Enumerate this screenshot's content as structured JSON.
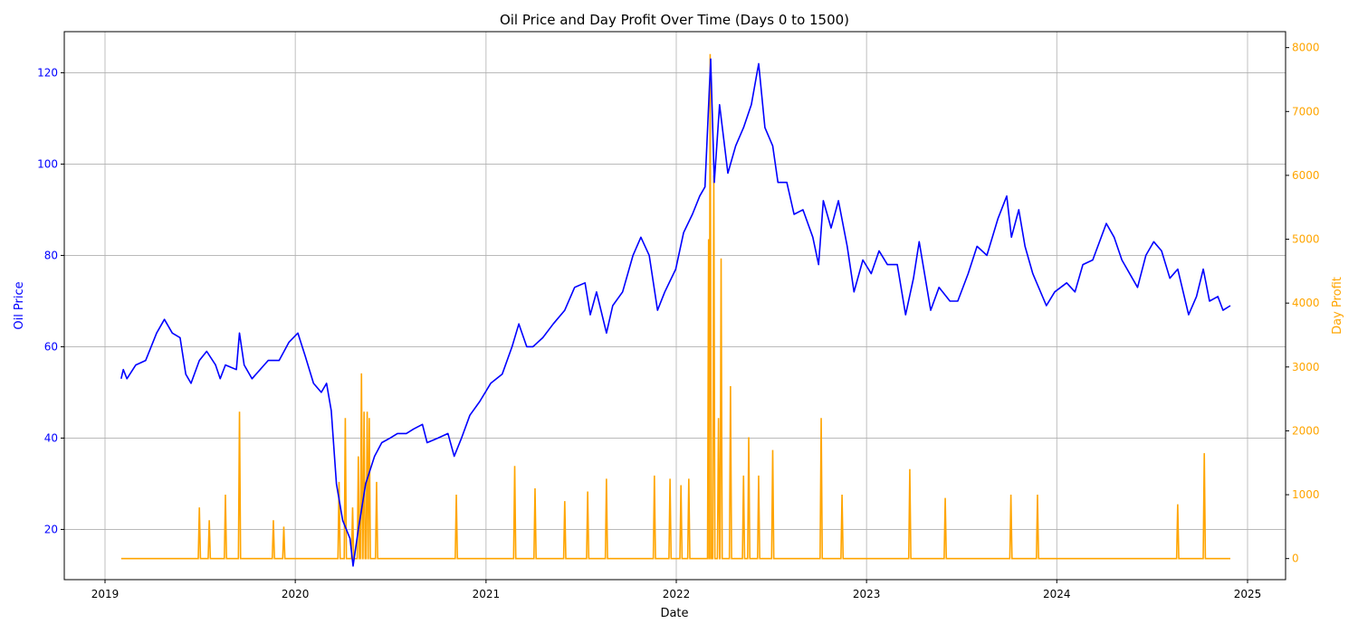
{
  "chart_data": {
    "type": "line",
    "title": "Oil Price and Day Profit Over Time (Days 0 to 1500)",
    "xlabel": "Date",
    "ylabel_left": "Oil Price",
    "ylabel_right": "Day Profit",
    "x_ticks": [
      "2019",
      "2020",
      "2021",
      "2022",
      "2023",
      "2024",
      "2025"
    ],
    "ylim_left": [
      9,
      129
    ],
    "yticks_left": [
      20,
      40,
      60,
      80,
      100,
      120
    ],
    "ylim_right": [
      -330,
      8250
    ],
    "yticks_right": [
      0,
      1000,
      2000,
      3000,
      4000,
      5000,
      6000,
      7000,
      8000
    ],
    "grid": true,
    "colors": {
      "oil": "#0000ff",
      "profit": "#ffa500",
      "grid": "#b0b0b0"
    },
    "series": [
      {
        "axis": "left",
        "color": "#0000ff",
        "points": [
          [
            "2019-02-01",
            53
          ],
          [
            "2019-02-05",
            55
          ],
          [
            "2019-02-12",
            53
          ],
          [
            "2019-03-01",
            56
          ],
          [
            "2019-03-20",
            57
          ],
          [
            "2019-04-10",
            63
          ],
          [
            "2019-04-25",
            66
          ],
          [
            "2019-05-10",
            63
          ],
          [
            "2019-05-25",
            62
          ],
          [
            "2019-06-05",
            54
          ],
          [
            "2019-06-15",
            52
          ],
          [
            "2019-07-01",
            57
          ],
          [
            "2019-07-15",
            59
          ],
          [
            "2019-08-01",
            56
          ],
          [
            "2019-08-10",
            53
          ],
          [
            "2019-08-20",
            56
          ],
          [
            "2019-09-10",
            55
          ],
          [
            "2019-09-16",
            63
          ],
          [
            "2019-09-25",
            56
          ],
          [
            "2019-10-10",
            53
          ],
          [
            "2019-11-10",
            57
          ],
          [
            "2019-12-01",
            57
          ],
          [
            "2019-12-20",
            61
          ],
          [
            "2020-01-06",
            63
          ],
          [
            "2020-01-20",
            58
          ],
          [
            "2020-02-05",
            52
          ],
          [
            "2020-02-20",
            50
          ],
          [
            "2020-03-01",
            52
          ],
          [
            "2020-03-10",
            46
          ],
          [
            "2020-03-20",
            30
          ],
          [
            "2020-04-01",
            22
          ],
          [
            "2020-04-15",
            18
          ],
          [
            "2020-04-21",
            12
          ],
          [
            "2020-05-01",
            20
          ],
          [
            "2020-05-15",
            30
          ],
          [
            "2020-06-01",
            36
          ],
          [
            "2020-06-15",
            39
          ],
          [
            "2020-07-01",
            40
          ],
          [
            "2020-07-15",
            41
          ],
          [
            "2020-08-01",
            41
          ],
          [
            "2020-08-15",
            42
          ],
          [
            "2020-09-01",
            43
          ],
          [
            "2020-09-10",
            39
          ],
          [
            "2020-10-01",
            40
          ],
          [
            "2020-10-20",
            41
          ],
          [
            "2020-11-01",
            36
          ],
          [
            "2020-11-15",
            40
          ],
          [
            "2020-12-01",
            45
          ],
          [
            "2020-12-20",
            48
          ],
          [
            "2021-01-10",
            52
          ],
          [
            "2021-02-01",
            54
          ],
          [
            "2021-02-20",
            60
          ],
          [
            "2021-03-05",
            65
          ],
          [
            "2021-03-20",
            60
          ],
          [
            "2021-04-01",
            60
          ],
          [
            "2021-04-20",
            62
          ],
          [
            "2021-05-10",
            65
          ],
          [
            "2021-06-01",
            68
          ],
          [
            "2021-06-20",
            73
          ],
          [
            "2021-07-10",
            74
          ],
          [
            "2021-07-20",
            67
          ],
          [
            "2021-08-01",
            72
          ],
          [
            "2021-08-20",
            63
          ],
          [
            "2021-09-01",
            69
          ],
          [
            "2021-09-20",
            72
          ],
          [
            "2021-10-10",
            80
          ],
          [
            "2021-10-25",
            84
          ],
          [
            "2021-11-10",
            80
          ],
          [
            "2021-11-26",
            68
          ],
          [
            "2021-12-10",
            72
          ],
          [
            "2021-12-31",
            77
          ],
          [
            "2022-01-15",
            85
          ],
          [
            "2022-02-01",
            89
          ],
          [
            "2022-02-15",
            93
          ],
          [
            "2022-02-25",
            95
          ],
          [
            "2022-03-08",
            123
          ],
          [
            "2022-03-15",
            96
          ],
          [
            "2022-03-25",
            113
          ],
          [
            "2022-04-10",
            98
          ],
          [
            "2022-04-25",
            104
          ],
          [
            "2022-05-10",
            108
          ],
          [
            "2022-05-25",
            113
          ],
          [
            "2022-06-08",
            122
          ],
          [
            "2022-06-20",
            108
          ],
          [
            "2022-07-05",
            104
          ],
          [
            "2022-07-15",
            96
          ],
          [
            "2022-08-01",
            96
          ],
          [
            "2022-08-15",
            89
          ],
          [
            "2022-09-01",
            90
          ],
          [
            "2022-09-20",
            84
          ],
          [
            "2022-10-01",
            78
          ],
          [
            "2022-10-10",
            92
          ],
          [
            "2022-10-25",
            86
          ],
          [
            "2022-11-08",
            92
          ],
          [
            "2022-11-25",
            82
          ],
          [
            "2022-12-08",
            72
          ],
          [
            "2022-12-25",
            79
          ],
          [
            "2023-01-10",
            76
          ],
          [
            "2023-01-25",
            81
          ],
          [
            "2023-02-10",
            78
          ],
          [
            "2023-03-01",
            78
          ],
          [
            "2023-03-17",
            67
          ],
          [
            "2023-04-01",
            75
          ],
          [
            "2023-04-12",
            83
          ],
          [
            "2023-05-04",
            68
          ],
          [
            "2023-05-20",
            73
          ],
          [
            "2023-06-10",
            70
          ],
          [
            "2023-06-25",
            70
          ],
          [
            "2023-07-15",
            76
          ],
          [
            "2023-08-01",
            82
          ],
          [
            "2023-08-20",
            80
          ],
          [
            "2023-09-10",
            88
          ],
          [
            "2023-09-27",
            93
          ],
          [
            "2023-10-06",
            84
          ],
          [
            "2023-10-20",
            90
          ],
          [
            "2023-11-01",
            82
          ],
          [
            "2023-11-16",
            76
          ],
          [
            "2023-12-12",
            69
          ],
          [
            "2023-12-28",
            72
          ],
          [
            "2024-01-20",
            74
          ],
          [
            "2024-02-05",
            72
          ],
          [
            "2024-02-20",
            78
          ],
          [
            "2024-03-10",
            79
          ],
          [
            "2024-04-05",
            87
          ],
          [
            "2024-04-20",
            84
          ],
          [
            "2024-05-05",
            79
          ],
          [
            "2024-06-04",
            73
          ],
          [
            "2024-06-20",
            80
          ],
          [
            "2024-07-05",
            83
          ],
          [
            "2024-07-20",
            81
          ],
          [
            "2024-08-05",
            75
          ],
          [
            "2024-08-20",
            77
          ],
          [
            "2024-09-10",
            67
          ],
          [
            "2024-09-25",
            71
          ],
          [
            "2024-10-08",
            77
          ],
          [
            "2024-10-20",
            70
          ],
          [
            "2024-11-05",
            71
          ],
          [
            "2024-11-15",
            68
          ],
          [
            "2024-11-29",
            69
          ]
        ]
      },
      {
        "axis": "right",
        "color": "#ffa500",
        "points": [
          [
            "2019-09-16",
            2300
          ],
          [
            "2019-08-20",
            1000
          ],
          [
            "2019-07-01",
            800
          ],
          [
            "2019-07-20",
            600
          ],
          [
            "2019-11-20",
            600
          ],
          [
            "2019-12-10",
            500
          ],
          [
            "2020-03-25",
            1200
          ],
          [
            "2020-04-06",
            2200
          ],
          [
            "2020-04-20",
            800
          ],
          [
            "2020-05-01",
            1600
          ],
          [
            "2020-05-07",
            2900
          ],
          [
            "2020-05-12",
            2300
          ],
          [
            "2020-05-18",
            2300
          ],
          [
            "2020-05-22",
            2200
          ],
          [
            "2020-06-05",
            1200
          ],
          [
            "2020-11-05",
            1000
          ],
          [
            "2021-02-25",
            1450
          ],
          [
            "2021-04-05",
            1100
          ],
          [
            "2021-06-01",
            900
          ],
          [
            "2021-07-15",
            1050
          ],
          [
            "2021-08-20",
            1250
          ],
          [
            "2021-11-20",
            1300
          ],
          [
            "2021-12-20",
            1250
          ],
          [
            "2022-01-10",
            1150
          ],
          [
            "2022-01-25",
            1250
          ],
          [
            "2022-03-04",
            5000
          ],
          [
            "2022-03-07",
            7900
          ],
          [
            "2022-03-14",
            6000
          ],
          [
            "2022-03-23",
            2200
          ],
          [
            "2022-03-28",
            4700
          ],
          [
            "2022-04-15",
            2700
          ],
          [
            "2022-05-10",
            1300
          ],
          [
            "2022-05-20",
            1900
          ],
          [
            "2022-06-08",
            1300
          ],
          [
            "2022-07-05",
            1700
          ],
          [
            "2022-10-06",
            2200
          ],
          [
            "2022-11-15",
            1000
          ],
          [
            "2023-03-25",
            1400
          ],
          [
            "2023-06-01",
            950
          ],
          [
            "2023-10-05",
            1000
          ],
          [
            "2023-11-25",
            1000
          ],
          [
            "2024-08-20",
            850
          ],
          [
            "2024-10-10",
            1650
          ]
        ]
      }
    ]
  }
}
